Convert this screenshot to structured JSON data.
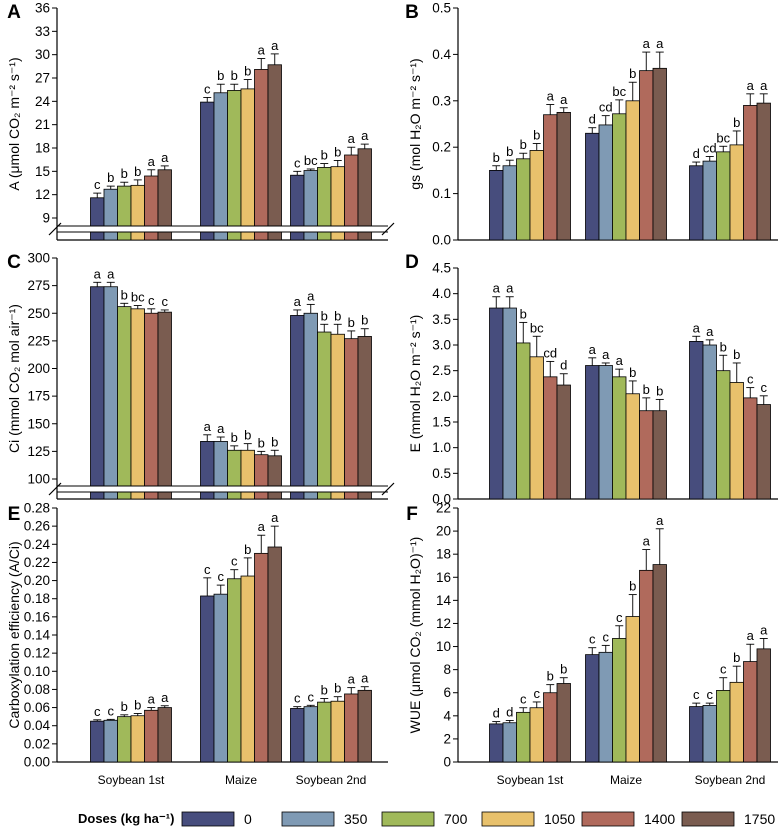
{
  "colors": {
    "series": [
      "#474d7d",
      "#7f9ab4",
      "#a0b95a",
      "#e8c16c",
      "#b06a5c",
      "#7a5c50"
    ],
    "axis": "#000000",
    "background": "#ffffff"
  },
  "legend": {
    "title": "Doses (kg ha⁻¹)",
    "entries": [
      "0",
      "350",
      "700",
      "1050",
      "1400",
      "1750"
    ]
  },
  "chart_data": [
    {
      "panel": "A",
      "type": "bar",
      "ylabel": "A (μmol CO₂ m⁻² s⁻¹)",
      "categories": [
        "Soybean 1st",
        "Maize",
        "Soybean 2nd"
      ],
      "ylim": [
        9,
        36
      ],
      "yticks": [
        9,
        12,
        15,
        18,
        21,
        24,
        27,
        30,
        33,
        36
      ],
      "axis_break": true,
      "series": [
        {
          "name": "0",
          "values": [
            11.6,
            23.9,
            14.5
          ],
          "errors": [
            0.6,
            0.6,
            0.5
          ],
          "letters": [
            "c",
            "c",
            "c"
          ]
        },
        {
          "name": "350",
          "values": [
            12.7,
            25.1,
            15.1
          ],
          "errors": [
            0.4,
            1.1,
            0.2
          ],
          "letters": [
            "b",
            "b",
            "bc"
          ]
        },
        {
          "name": "700",
          "values": [
            13.1,
            25.4,
            15.5
          ],
          "errors": [
            0.5,
            0.8,
            0.5
          ],
          "letters": [
            "b",
            "b",
            "b"
          ]
        },
        {
          "name": "1050",
          "values": [
            13.2,
            25.6,
            15.6
          ],
          "errors": [
            0.7,
            1.2,
            0.8
          ],
          "letters": [
            "b",
            "b",
            "b"
          ]
        },
        {
          "name": "1400",
          "values": [
            14.4,
            28.1,
            17.1
          ],
          "errors": [
            0.8,
            1.4,
            1.0
          ],
          "letters": [
            "a",
            "a",
            "a"
          ]
        },
        {
          "name": "1750",
          "values": [
            15.2,
            28.7,
            17.9
          ],
          "errors": [
            0.5,
            1.4,
            0.6
          ],
          "letters": [
            "a",
            "a",
            "a"
          ]
        }
      ]
    },
    {
      "panel": "B",
      "type": "bar",
      "ylabel": "gs (mol H₂O m⁻² s⁻¹)",
      "categories": [
        "Soybean 1st",
        "Maize",
        "Soybean 2nd"
      ],
      "ylim": [
        0,
        0.5
      ],
      "yticks": [
        0.0,
        0.1,
        0.2,
        0.3,
        0.4,
        0.5
      ],
      "axis_break": false,
      "series": [
        {
          "name": "0",
          "values": [
            0.15,
            0.23,
            0.16
          ],
          "errors": [
            0.01,
            0.012,
            0.008
          ],
          "letters": [
            "b",
            "d",
            "d"
          ]
        },
        {
          "name": "350",
          "values": [
            0.16,
            0.248,
            0.17
          ],
          "errors": [
            0.012,
            0.02,
            0.01
          ],
          "letters": [
            "b",
            "cd",
            "cd"
          ]
        },
        {
          "name": "700",
          "values": [
            0.175,
            0.272,
            0.19
          ],
          "errors": [
            0.012,
            0.03,
            0.012
          ],
          "letters": [
            "b",
            "bc",
            "bc"
          ]
        },
        {
          "name": "1050",
          "values": [
            0.193,
            0.3,
            0.205
          ],
          "errors": [
            0.015,
            0.04,
            0.03
          ],
          "letters": [
            "b",
            "b",
            "b"
          ]
        },
        {
          "name": "1400",
          "values": [
            0.27,
            0.365,
            0.29
          ],
          "errors": [
            0.022,
            0.04,
            0.025
          ],
          "letters": [
            "a",
            "a",
            "a"
          ]
        },
        {
          "name": "1750",
          "values": [
            0.275,
            0.37,
            0.295
          ],
          "errors": [
            0.01,
            0.035,
            0.02
          ],
          "letters": [
            "a",
            "a",
            "a"
          ]
        }
      ]
    },
    {
      "panel": "C",
      "type": "bar",
      "ylabel": "Ci (mmol CO₂ mol air⁻¹)",
      "categories": [
        "Soybean 1st",
        "Maize",
        "Soybean 2nd"
      ],
      "ylim": [
        100,
        300
      ],
      "yticks": [
        100,
        125,
        150,
        175,
        200,
        225,
        250,
        275,
        300
      ],
      "axis_break": true,
      "series": [
        {
          "name": "0",
          "values": [
            274,
            134,
            248
          ],
          "errors": [
            4,
            6,
            5
          ],
          "letters": [
            "a",
            "a",
            "a"
          ]
        },
        {
          "name": "350",
          "values": [
            274,
            134,
            250
          ],
          "errors": [
            4,
            4,
            8
          ],
          "letters": [
            "a",
            "a",
            "a"
          ]
        },
        {
          "name": "700",
          "values": [
            256,
            126,
            233
          ],
          "errors": [
            3,
            4,
            7
          ],
          "letters": [
            "b",
            "b",
            "b"
          ]
        },
        {
          "name": "1050",
          "values": [
            254,
            126,
            231
          ],
          "errors": [
            3,
            6,
            9
          ],
          "letters": [
            "bc",
            "b",
            "b"
          ]
        },
        {
          "name": "1400",
          "values": [
            250,
            122,
            227
          ],
          "errors": [
            4,
            3,
            7
          ],
          "letters": [
            "c",
            "b",
            "b"
          ]
        },
        {
          "name": "1750",
          "values": [
            251,
            121,
            229
          ],
          "errors": [
            2,
            5,
            7
          ],
          "letters": [
            "c",
            "b",
            "b"
          ]
        }
      ]
    },
    {
      "panel": "D",
      "type": "bar",
      "ylabel": "E (mmol H₂O m⁻² s⁻¹)",
      "categories": [
        "Soybean 1st",
        "Maize",
        "Soybean 2nd"
      ],
      "ylim": [
        0,
        4.5
      ],
      "yticks": [
        0.0,
        0.5,
        1.0,
        1.5,
        2.0,
        2.5,
        3.0,
        3.5,
        4.0,
        4.5
      ],
      "axis_break": false,
      "series": [
        {
          "name": "0",
          "values": [
            3.72,
            2.6,
            3.07
          ],
          "errors": [
            0.22,
            0.15,
            0.1
          ],
          "letters": [
            "a",
            "a",
            "a"
          ]
        },
        {
          "name": "350",
          "values": [
            3.72,
            2.6,
            3.0
          ],
          "errors": [
            0.22,
            0.05,
            0.1
          ],
          "letters": [
            "a",
            "a",
            "a"
          ]
        },
        {
          "name": "700",
          "values": [
            3.04,
            2.38,
            2.5
          ],
          "errors": [
            0.4,
            0.15,
            0.3
          ],
          "letters": [
            "b",
            "a",
            "b"
          ]
        },
        {
          "name": "1050",
          "values": [
            2.77,
            2.05,
            2.27
          ],
          "errors": [
            0.4,
            0.25,
            0.38
          ],
          "letters": [
            "bc",
            "b",
            "b"
          ]
        },
        {
          "name": "1400",
          "values": [
            2.38,
            1.72,
            1.97
          ],
          "errors": [
            0.3,
            0.25,
            0.2
          ],
          "letters": [
            "cd",
            "b",
            "c"
          ]
        },
        {
          "name": "1750",
          "values": [
            2.22,
            1.72,
            1.84
          ],
          "errors": [
            0.22,
            0.22,
            0.17
          ],
          "letters": [
            "d",
            "b",
            "c"
          ]
        }
      ]
    },
    {
      "panel": "E",
      "type": "bar",
      "ylabel": "Carboxylation efficiency (A/Ci)",
      "categories": [
        "Soybean 1st",
        "Maize",
        "Soybean 2nd"
      ],
      "ylim": [
        0,
        0.28
      ],
      "yticks": [
        0.0,
        0.02,
        0.04,
        0.06,
        0.08,
        0.1,
        0.12,
        0.14,
        0.16,
        0.18,
        0.2,
        0.22,
        0.24,
        0.26,
        0.28
      ],
      "axis_break": false,
      "series": [
        {
          "name": "0",
          "values": [
            0.045,
            0.183,
            0.059
          ],
          "errors": [
            0.0015,
            0.02,
            0.002
          ],
          "letters": [
            "c",
            "c",
            "c"
          ]
        },
        {
          "name": "350",
          "values": [
            0.046,
            0.185,
            0.061
          ],
          "errors": [
            0.001,
            0.01,
            0.0015
          ],
          "letters": [
            "c",
            "c",
            "c"
          ]
        },
        {
          "name": "700",
          "values": [
            0.05,
            0.202,
            0.066
          ],
          "errors": [
            0.002,
            0.01,
            0.004
          ],
          "letters": [
            "b",
            "c",
            "b"
          ]
        },
        {
          "name": "1050",
          "values": [
            0.051,
            0.205,
            0.067
          ],
          "errors": [
            0.0025,
            0.02,
            0.005
          ],
          "letters": [
            "b",
            "b",
            "b"
          ]
        },
        {
          "name": "1400",
          "values": [
            0.057,
            0.23,
            0.075
          ],
          "errors": [
            0.003,
            0.02,
            0.007
          ],
          "letters": [
            "a",
            "a",
            "a"
          ]
        },
        {
          "name": "1750",
          "values": [
            0.06,
            0.237,
            0.079
          ],
          "errors": [
            0.002,
            0.023,
            0.004
          ],
          "letters": [
            "a",
            "a",
            "a"
          ]
        }
      ]
    },
    {
      "panel": "F",
      "type": "bar",
      "ylabel": "WUE (μmol CO₂ (mmol H₂O)⁻¹)",
      "categories": [
        "Soybean 1st",
        "Maize",
        "Soybean 2nd"
      ],
      "ylim": [
        0,
        22
      ],
      "yticks": [
        0,
        2,
        4,
        6,
        8,
        10,
        12,
        14,
        16,
        18,
        20,
        22
      ],
      "axis_break": false,
      "series": [
        {
          "name": "0",
          "values": [
            3.3,
            9.3,
            4.8
          ],
          "errors": [
            0.2,
            0.6,
            0.3
          ],
          "letters": [
            "d",
            "c",
            "c"
          ]
        },
        {
          "name": "350",
          "values": [
            3.4,
            9.5,
            4.9
          ],
          "errors": [
            0.2,
            0.6,
            0.2
          ],
          "letters": [
            "d",
            "c",
            "c"
          ]
        },
        {
          "name": "700",
          "values": [
            4.3,
            10.7,
            6.2
          ],
          "errors": [
            0.4,
            1.1,
            1.1
          ],
          "letters": [
            "c",
            "c",
            "c"
          ]
        },
        {
          "name": "1050",
          "values": [
            4.7,
            12.6,
            6.9
          ],
          "errors": [
            0.5,
            1.9,
            1.4
          ],
          "letters": [
            "c",
            "b",
            "b"
          ]
        },
        {
          "name": "1400",
          "values": [
            6.0,
            16.6,
            8.7
          ],
          "errors": [
            0.7,
            1.8,
            1.5
          ],
          "letters": [
            "b",
            "a",
            "a"
          ]
        },
        {
          "name": "1750",
          "values": [
            6.8,
            17.1,
            9.8
          ],
          "errors": [
            0.5,
            3.1,
            0.9
          ],
          "letters": [
            "b",
            "a",
            "a"
          ]
        }
      ]
    }
  ]
}
